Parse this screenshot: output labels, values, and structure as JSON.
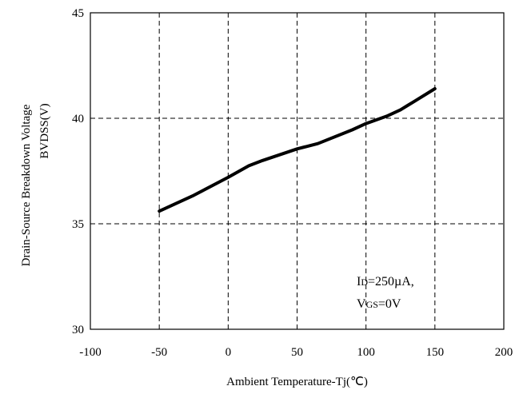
{
  "chart_data": {
    "type": "line",
    "title": "",
    "xlabel": "Ambient Temperature-Tj(℃)",
    "ylabel_line1": "Drain-Source Breakdown Voltage",
    "ylabel_line2": "BVDSS(V)",
    "xlim": [
      -100,
      200
    ],
    "ylim": [
      30,
      45
    ],
    "x_ticks": [
      -100,
      -50,
      0,
      50,
      100,
      150,
      200
    ],
    "y_ticks": [
      30,
      35,
      40,
      45
    ],
    "grid": true,
    "series": [
      {
        "x": [
          -50,
          -25,
          0,
          15,
          25,
          50,
          65,
          90,
          100,
          115,
          125,
          135,
          150
        ],
        "values": [
          35.6,
          36.35,
          37.2,
          37.75,
          38.0,
          38.55,
          38.8,
          39.45,
          39.75,
          40.1,
          40.4,
          40.8,
          41.4
        ]
      }
    ],
    "annotation": {
      "line1_main": "I",
      "line1_sub": "D",
      "line1_rest": "=250µA,",
      "line2_main": "V",
      "line2_sub": "GS",
      "line2_rest": "=0V"
    }
  }
}
